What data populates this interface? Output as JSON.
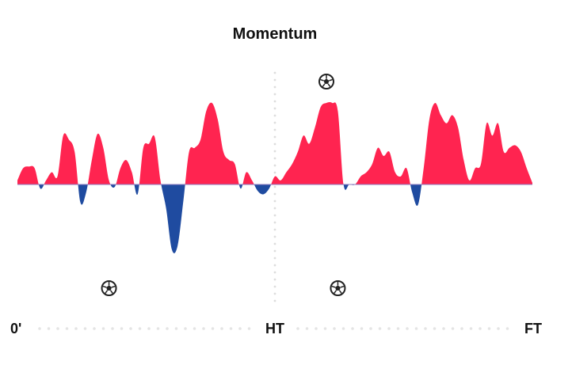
{
  "chart_data": {
    "type": "momentum",
    "title": "Momentum",
    "x": [
      0,
      1,
      2,
      3,
      4,
      5,
      6,
      7,
      8,
      9,
      10,
      11,
      12,
      13,
      14,
      15,
      16,
      17,
      18,
      19,
      20,
      21,
      22,
      23,
      24,
      25,
      26,
      27,
      28,
      29,
      30,
      31,
      32,
      33,
      34,
      35,
      36,
      37,
      38,
      39,
      40,
      41,
      42,
      43,
      44,
      45,
      46,
      47,
      48,
      49,
      50,
      51,
      52,
      53,
      54,
      55,
      56,
      57,
      58,
      59,
      60,
      61,
      62,
      63,
      64,
      65,
      66,
      67,
      68,
      69,
      70,
      71,
      72,
      73,
      74,
      75,
      76,
      77,
      78,
      79,
      80,
      81,
      82,
      83,
      84,
      85,
      86,
      87,
      88,
      89,
      90
    ],
    "values": [
      5,
      20,
      22,
      20,
      -5,
      5,
      15,
      10,
      60,
      55,
      40,
      -22,
      -10,
      30,
      62,
      45,
      5,
      -3,
      20,
      30,
      15,
      -12,
      45,
      50,
      58,
      5,
      -30,
      -80,
      -75,
      -20,
      40,
      45,
      55,
      90,
      100,
      80,
      40,
      30,
      25,
      -5,
      15,
      5,
      -8,
      -12,
      -5,
      10,
      5,
      15,
      25,
      40,
      60,
      50,
      70,
      95,
      100,
      100,
      90,
      0,
      0,
      0,
      10,
      15,
      25,
      45,
      35,
      40,
      15,
      10,
      20,
      -10,
      -25,
      20,
      80,
      100,
      85,
      75,
      85,
      70,
      30,
      5,
      20,
      25,
      75,
      60,
      75,
      40,
      45,
      48,
      40,
      20,
      2
    ],
    "xlim": [
      0,
      90
    ],
    "ylim": [
      -100,
      100
    ],
    "xticks": [
      {
        "value": 0,
        "label": "0'"
      },
      {
        "value": 45,
        "label": "HT"
      },
      {
        "value": 90,
        "label": "FT"
      }
    ],
    "home_goals": [
      54
    ],
    "away_goals": [
      16,
      56
    ],
    "positive_color": "#ff2450",
    "negative_color": "#1f4ba0"
  }
}
